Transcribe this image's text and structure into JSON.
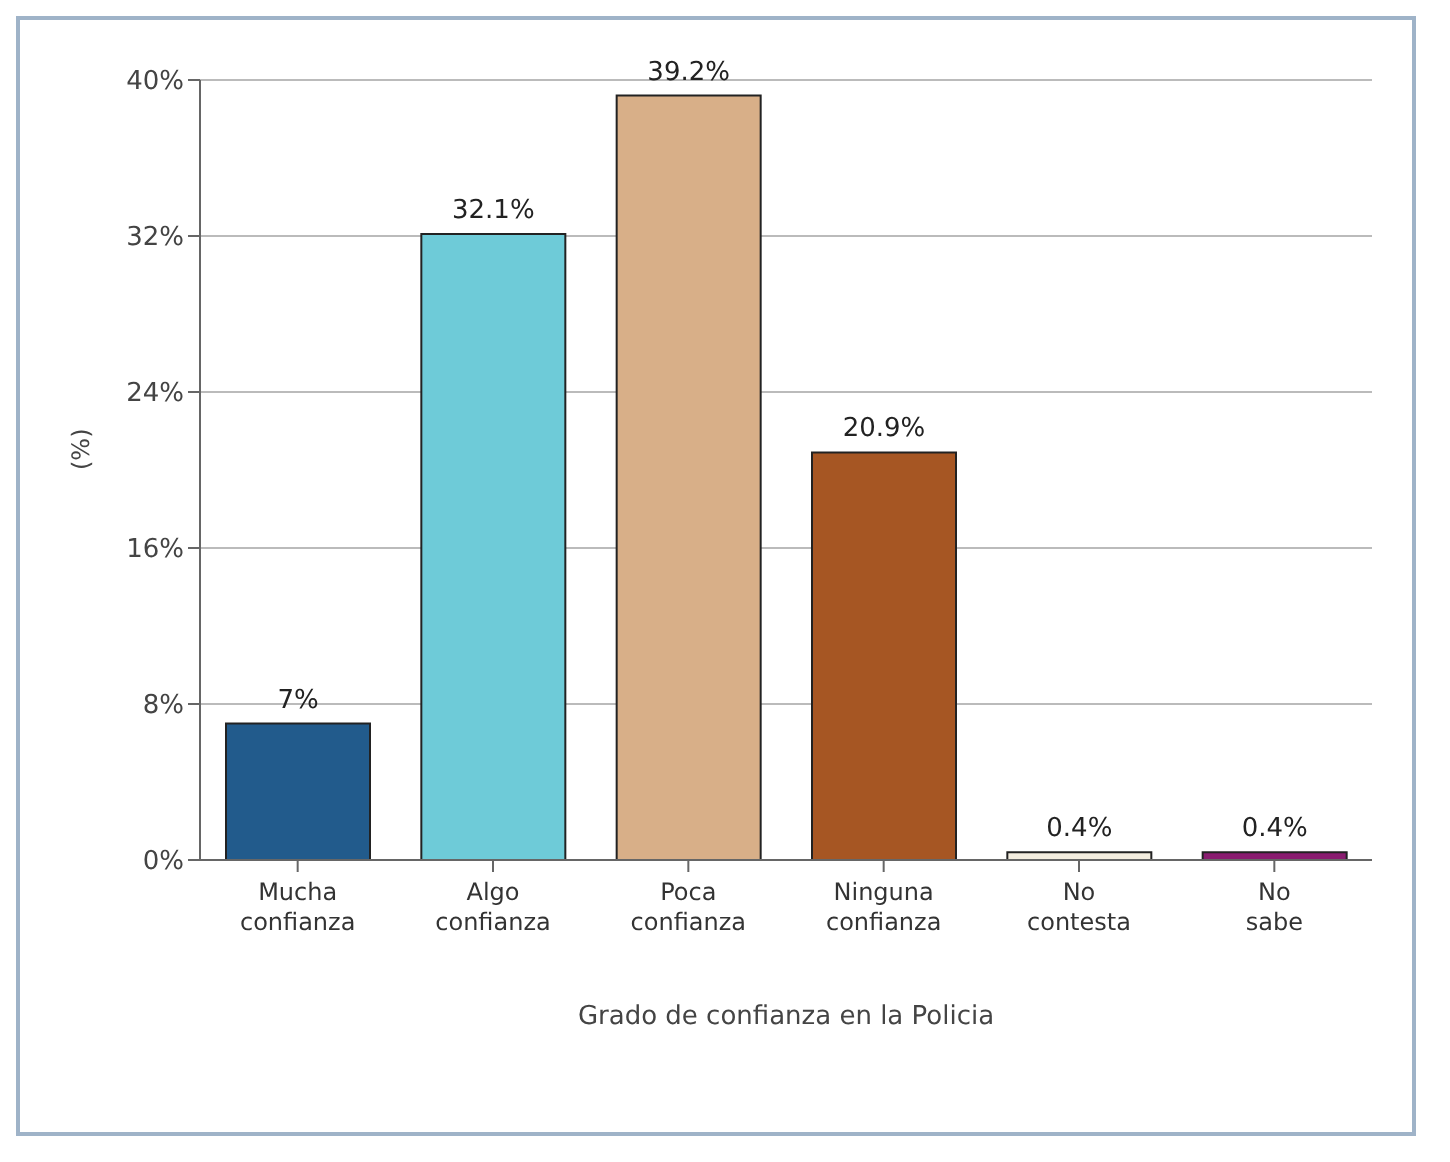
{
  "chart_data": {
    "type": "bar",
    "xlabel": "Grado de confianza en la Policia",
    "ylabel": "(%)",
    "categories": [
      "Mucha confianza",
      "Algo confianza",
      "Poca confianza",
      "Ninguna confianza",
      "No contesta",
      "No sabe"
    ],
    "values": [
      7,
      32.1,
      39.2,
      20.9,
      0.4,
      0.4
    ],
    "colors": [
      "#225b8c",
      "#6ecbd8",
      "#d8af88",
      "#a65623",
      "#f3eddf",
      "#8a1c70"
    ],
    "value_labels": [
      "7%",
      "32.1%",
      "39.2%",
      "20.9%",
      "0.4%",
      "0.4%"
    ],
    "ylim": [
      0,
      40
    ],
    "yticks": [
      {
        "value": 0,
        "label": "0%"
      },
      {
        "value": 8,
        "label": "8%"
      },
      {
        "value": 16,
        "label": "16%"
      },
      {
        "value": 24,
        "label": "24%"
      },
      {
        "value": 32,
        "label": "32%"
      },
      {
        "value": 40,
        "label": "40%"
      }
    ],
    "grid": "y"
  }
}
